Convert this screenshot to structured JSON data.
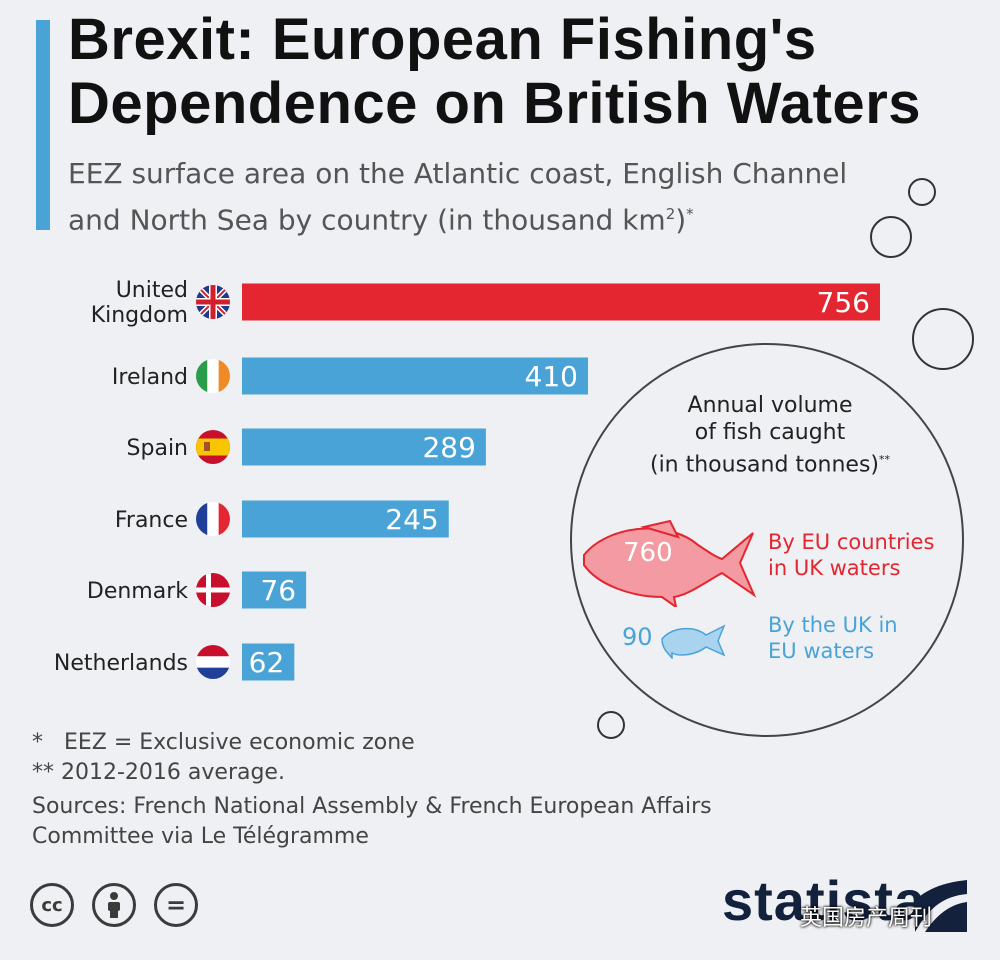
{
  "header": {
    "title": "Brexit: European Fishing's Dependence on British Waters",
    "subtitle": "EEZ surface area on the Atlantic coast, English Channel and North Sea by country (in thousand km",
    "subtitle_sup": "2",
    "subtitle_tail": ")",
    "subtitle_star": "*"
  },
  "chart_data": {
    "type": "bar",
    "orientation": "horizontal",
    "categories": [
      "United Kingdom",
      "Ireland",
      "Spain",
      "France",
      "Denmark",
      "Netherlands"
    ],
    "values": [
      756,
      410,
      289,
      245,
      76,
      62
    ],
    "highlight_color": "#e3262f",
    "bar_color": "#4aa3d6",
    "xlim": [
      0,
      756
    ],
    "grid": false
  },
  "flags": [
    "uk-flag-icon",
    "ireland-flag-icon",
    "spain-flag-icon",
    "france-flag-icon",
    "denmark-flag-icon",
    "netherlands-flag-icon"
  ],
  "inset": {
    "title_lines": [
      "Annual volume",
      "of fish caught",
      "(in thousand tonnes)"
    ],
    "title_sup": "**",
    "eu_value": "760",
    "eu_label_lines": [
      "By EU countries",
      "in UK waters"
    ],
    "eu_color": "#e3262f",
    "uk_value": "90",
    "uk_label_lines": [
      "By the UK in",
      "EU waters"
    ],
    "uk_color": "#4aa3d6"
  },
  "footnotes": {
    "note1": "*   EEZ = Exclusive economic zone",
    "note2": "** 2012-2016 average.",
    "sources": "Sources: French National Assembly & French European Affairs Committee via Le Télégramme"
  },
  "footer": {
    "icons": [
      "cc-icon",
      "attribution-icon",
      "no-derivatives-icon"
    ],
    "cc_text": "cc",
    "nd_text": "=",
    "brand": "statista",
    "watermark": "英国房产周刊"
  }
}
